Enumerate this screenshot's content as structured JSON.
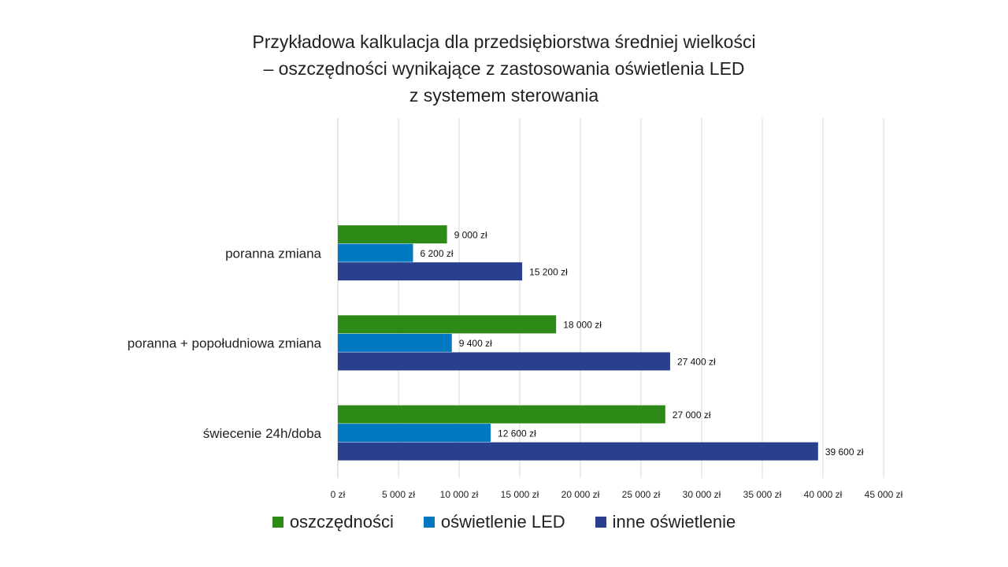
{
  "chart_data": {
    "type": "bar",
    "orientation": "horizontal",
    "title_lines": [
      "Przykładowa kalkulacja dla przedsiębiorstwa średniej wielkości",
      "– oszczędności wynikające z zastosowania oświetlenia LED",
      "z systemem sterowania"
    ],
    "categories": [
      "poranna zmiana",
      "poranna + popołudniowa zmiana",
      "świecenie 24h/doba"
    ],
    "series": [
      {
        "name": "oszczędności",
        "color": "#2e8a17",
        "values": [
          9000,
          18000,
          27000
        ],
        "labels": [
          "9 000 zł",
          "18 000 zł",
          "27 000 zł"
        ]
      },
      {
        "name": "oświetlenie LED",
        "color": "#0079c1",
        "values": [
          6200,
          9400,
          12600
        ],
        "labels": [
          "6 200 zł",
          "9 400 zł",
          "12 600 zł"
        ]
      },
      {
        "name": "inne oświetlenie",
        "color": "#2a3f8e",
        "values": [
          15200,
          27400,
          39600
        ],
        "labels": [
          "15 200 zł",
          "27 400 zł",
          "39 600 zł"
        ]
      }
    ],
    "xlim": [
      0,
      45000
    ],
    "xticks": [
      0,
      5000,
      10000,
      15000,
      20000,
      25000,
      30000,
      35000,
      40000,
      45000
    ],
    "xtick_labels": [
      "0 zł",
      "5 000 zł",
      "10 000 zł",
      "15 000 zł",
      "20 000 zł",
      "25 000 zł",
      "30 000 zł",
      "35 000 zł",
      "40 000 zł",
      "45 000 zł"
    ],
    "grid": true,
    "legend_position": "bottom"
  }
}
